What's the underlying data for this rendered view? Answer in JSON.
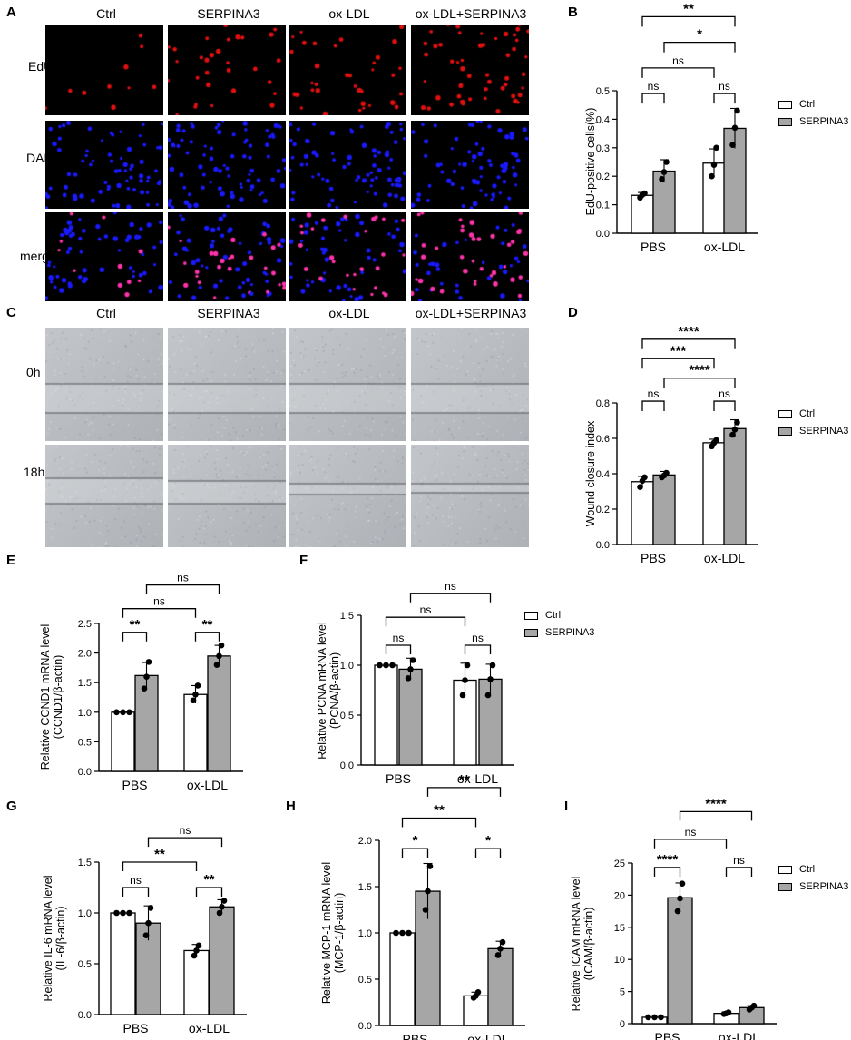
{
  "panel_letters": {
    "A": "A",
    "B": "B",
    "C": "C",
    "D": "D",
    "E": "E",
    "F": "F",
    "G": "G",
    "H": "H",
    "I": "I"
  },
  "micro_a": {
    "columns": [
      "Ctrl",
      "SERPINA3",
      "ox-LDL",
      "ox-LDL+SERPINA3"
    ],
    "rows": [
      "EdU",
      "DAPI",
      "merge"
    ]
  },
  "micro_c": {
    "columns": [
      "Ctrl",
      "SERPINA3",
      "ox-LDL",
      "ox-LDL+SERPINA3"
    ],
    "rows": [
      "0h",
      "18h"
    ]
  },
  "legend": {
    "ctrl": "Ctrl",
    "serpina3": "SERPINA3"
  },
  "colors": {
    "ctrl": "#ffffff",
    "serpina3": "#a6a6a6",
    "edu": "#e01010",
    "dapi": "#1a1aff",
    "merge": "#ff33aa",
    "scratch": "#b9bcc0"
  },
  "chart_data": [
    {
      "id": "B",
      "type": "bar",
      "categories": [
        "PBS",
        "ox-LDL"
      ],
      "ylabel": "EdU-positive cells(%)",
      "ylim": [
        0,
        0.5
      ],
      "yticks": [
        0.0,
        0.1,
        0.2,
        0.3,
        0.4,
        0.5
      ],
      "series": [
        {
          "name": "Ctrl",
          "values": [
            0.133,
            0.246
          ],
          "err": [
            0.01,
            0.05
          ],
          "points": [
            [
              0.125,
              0.135,
              0.14
            ],
            [
              0.2,
              0.24,
              0.3
            ]
          ]
        },
        {
          "name": "SERPINA3",
          "values": [
            0.218,
            0.368
          ],
          "err": [
            0.04,
            0.07
          ],
          "points": [
            [
              0.19,
              0.215,
              0.25
            ],
            [
              0.31,
              0.37,
              0.43
            ]
          ]
        }
      ],
      "sig": [
        {
          "label": "ns",
          "from": [
            0,
            0
          ],
          "to": [
            0,
            1
          ],
          "level": 0.49
        },
        {
          "label": "ns",
          "from": [
            1,
            0
          ],
          "to": [
            1,
            1
          ],
          "level": 0.49
        },
        {
          "label": "ns",
          "from": [
            0,
            0
          ],
          "to": [
            1,
            0
          ],
          "level": 0.58
        },
        {
          "label": "*",
          "from": [
            0,
            1
          ],
          "to": [
            1,
            1
          ],
          "level": 0.67
        },
        {
          "label": "**",
          "from": [
            0,
            0
          ],
          "to": [
            1,
            1
          ],
          "level": 0.76
        }
      ]
    },
    {
      "id": "D",
      "type": "bar",
      "categories": [
        "PBS",
        "ox-LDL"
      ],
      "ylabel": "Wound closure index",
      "ylim": [
        0,
        0.8
      ],
      "yticks": [
        0.0,
        0.2,
        0.4,
        0.6,
        0.8
      ],
      "series": [
        {
          "name": "Ctrl",
          "values": [
            0.355,
            0.575
          ],
          "err": [
            0.03,
            0.02
          ],
          "points": [
            [
              0.325,
              0.36,
              0.38
            ],
            [
              0.555,
              0.575,
              0.59
            ]
          ]
        },
        {
          "name": "SERPINA3",
          "values": [
            0.393,
            0.655
          ],
          "err": [
            0.02,
            0.05
          ],
          "points": [
            [
              0.38,
              0.39,
              0.405
            ],
            [
              0.62,
              0.65,
              0.69
            ]
          ]
        }
      ],
      "sig": [
        {
          "label": "ns",
          "from": [
            0,
            0
          ],
          "to": [
            0,
            1
          ],
          "level": 0.81
        },
        {
          "label": "ns",
          "from": [
            1,
            0
          ],
          "to": [
            1,
            1
          ],
          "level": 0.81
        },
        {
          "label": "****",
          "from": [
            0,
            1
          ],
          "to": [
            1,
            1
          ],
          "level": 0.94
        },
        {
          "label": "***",
          "from": [
            0,
            0
          ],
          "to": [
            1,
            0
          ],
          "level": 1.05
        },
        {
          "label": "****",
          "from": [
            0,
            0
          ],
          "to": [
            1,
            1
          ],
          "level": 1.16
        }
      ]
    },
    {
      "id": "E",
      "type": "bar",
      "categories": [
        "PBS",
        "ox-LDL"
      ],
      "ylabel": "Relative CCND1 mRNA level (CCND1/β-actin)",
      "ylim": [
        0,
        2.5
      ],
      "yticks": [
        0.0,
        0.5,
        1.0,
        1.5,
        2.0,
        2.5
      ],
      "series": [
        {
          "name": "Ctrl",
          "values": [
            1.0,
            1.3
          ],
          "err": [
            0.0,
            0.15
          ],
          "points": [
            [
              1.0,
              1.0,
              1.0
            ],
            [
              1.2,
              1.3,
              1.45
            ]
          ]
        },
        {
          "name": "SERPINA3",
          "values": [
            1.62,
            1.95
          ],
          "err": [
            0.22,
            0.18
          ],
          "points": [
            [
              1.4,
              1.6,
              1.85
            ],
            [
              1.8,
              1.95,
              2.13
            ]
          ]
        }
      ],
      "sig": [
        {
          "label": "**",
          "from": [
            0,
            0
          ],
          "to": [
            0,
            1
          ],
          "level": 2.35
        },
        {
          "label": "**",
          "from": [
            1,
            0
          ],
          "to": [
            1,
            1
          ],
          "level": 2.35
        },
        {
          "label": "ns",
          "from": [
            0,
            0
          ],
          "to": [
            1,
            0
          ],
          "level": 2.75
        },
        {
          "label": "ns",
          "from": [
            0,
            1
          ],
          "to": [
            1,
            1
          ],
          "level": 3.15
        }
      ]
    },
    {
      "id": "F",
      "type": "bar",
      "categories": [
        "PBS",
        "ox-LDL"
      ],
      "ylabel": "Relative PCNA mRNA level (PCNA/β-actin)",
      "ylim": [
        0,
        1.5
      ],
      "yticks": [
        0.0,
        0.5,
        1.0,
        1.5
      ],
      "series": [
        {
          "name": "Ctrl",
          "values": [
            1.0,
            0.85
          ],
          "err": [
            0.0,
            0.17
          ],
          "points": [
            [
              1.0,
              1.0,
              1.0
            ],
            [
              0.7,
              0.85,
              1.0
            ]
          ]
        },
        {
          "name": "SERPINA3",
          "values": [
            0.96,
            0.86
          ],
          "err": [
            0.11,
            0.15
          ],
          "points": [
            [
              0.87,
              0.96,
              1.05
            ],
            [
              0.7,
              0.86,
              1.0
            ]
          ]
        }
      ],
      "sig": [
        {
          "label": "ns",
          "from": [
            0,
            0
          ],
          "to": [
            0,
            1
          ],
          "level": 1.2
        },
        {
          "label": "ns",
          "from": [
            1,
            0
          ],
          "to": [
            1,
            1
          ],
          "level": 1.2
        },
        {
          "label": "ns",
          "from": [
            0,
            0
          ],
          "to": [
            1,
            0
          ],
          "level": 1.48
        },
        {
          "label": "ns",
          "from": [
            0,
            1
          ],
          "to": [
            1,
            1
          ],
          "level": 1.72
        }
      ]
    },
    {
      "id": "G",
      "type": "bar",
      "categories": [
        "PBS",
        "ox-LDL"
      ],
      "ylabel": "Relative IL-6 mRNA level (IL-6/β-actin)",
      "ylim": [
        0,
        1.5
      ],
      "yticks": [
        0.0,
        0.5,
        1.0,
        1.5
      ],
      "series": [
        {
          "name": "Ctrl",
          "values": [
            1.0,
            0.63
          ],
          "err": [
            0.0,
            0.06
          ],
          "points": [
            [
              1.0,
              1.0,
              1.0
            ],
            [
              0.58,
              0.63,
              0.68
            ]
          ]
        },
        {
          "name": "SERPINA3",
          "values": [
            0.9,
            1.06
          ],
          "err": [
            0.17,
            0.07
          ],
          "points": [
            [
              0.78,
              0.9,
              1.05
            ],
            [
              1.0,
              1.06,
              1.12
            ]
          ]
        }
      ],
      "sig": [
        {
          "label": "ns",
          "from": [
            0,
            0
          ],
          "to": [
            0,
            1
          ],
          "level": 1.25
        },
        {
          "label": "**",
          "from": [
            1,
            0
          ],
          "to": [
            1,
            1
          ],
          "level": 1.25
        },
        {
          "label": "**",
          "from": [
            0,
            0
          ],
          "to": [
            1,
            0
          ],
          "level": 1.5
        },
        {
          "label": "ns",
          "from": [
            0,
            1
          ],
          "to": [
            1,
            1
          ],
          "level": 1.74
        }
      ]
    },
    {
      "id": "H",
      "type": "bar",
      "categories": [
        "PBS",
        "ox-LDL"
      ],
      "ylabel": "Relative MCP-1 mRNA level (MCP-1/β-actin)",
      "ylim": [
        0,
        2.0
      ],
      "yticks": [
        0.0,
        0.5,
        1.0,
        1.5,
        2.0
      ],
      "series": [
        {
          "name": "Ctrl",
          "values": [
            1.0,
            0.32
          ],
          "err": [
            0.0,
            0.04
          ],
          "points": [
            [
              1.0,
              1.0,
              1.0
            ],
            [
              0.3,
              0.32,
              0.36
            ]
          ]
        },
        {
          "name": "SERPINA3",
          "values": [
            1.45,
            0.83
          ],
          "err": [
            0.3,
            0.08
          ],
          "points": [
            [
              1.25,
              1.45,
              1.72
            ],
            [
              0.76,
              0.83,
              0.9
            ]
          ]
        }
      ],
      "sig": [
        {
          "label": "*",
          "from": [
            0,
            0
          ],
          "to": [
            0,
            1
          ],
          "level": 1.91
        },
        {
          "label": "*",
          "from": [
            1,
            0
          ],
          "to": [
            1,
            1
          ],
          "level": 1.91
        },
        {
          "label": "**",
          "from": [
            0,
            0
          ],
          "to": [
            1,
            0
          ],
          "level": 2.24
        },
        {
          "label": "**",
          "from": [
            0,
            1
          ],
          "to": [
            1,
            1
          ],
          "level": 2.57
        }
      ]
    },
    {
      "id": "I",
      "type": "bar",
      "categories": [
        "PBS",
        "ox-LDL"
      ],
      "ylabel": "Relative ICAM mRNA level (ICAM/β-actin)",
      "ylim": [
        0,
        25
      ],
      "yticks": [
        0,
        5,
        10,
        15,
        20,
        25
      ],
      "series": [
        {
          "name": "Ctrl",
          "values": [
            1.0,
            1.6
          ],
          "err": [
            0.0,
            0.2
          ],
          "points": [
            [
              1.0,
              1.0,
              1.0
            ],
            [
              1.5,
              1.6,
              1.75
            ]
          ]
        },
        {
          "name": "SERPINA3",
          "values": [
            19.6,
            2.5
          ],
          "err": [
            2.3,
            0.3
          ],
          "points": [
            [
              17.5,
              19.5,
              21.8
            ],
            [
              2.2,
              2.5,
              2.8
            ]
          ]
        }
      ],
      "sig": [
        {
          "label": "****",
          "from": [
            0,
            0
          ],
          "to": [
            0,
            1
          ],
          "level": 24.3
        },
        {
          "label": "ns",
          "from": [
            1,
            0
          ],
          "to": [
            1,
            1
          ],
          "level": 24.3
        },
        {
          "label": "ns",
          "from": [
            0,
            0
          ],
          "to": [
            1,
            0
          ],
          "level": 28.7
        },
        {
          "label": "****",
          "from": [
            0,
            1
          ],
          "to": [
            1,
            1
          ],
          "level": 33.0
        }
      ]
    }
  ]
}
